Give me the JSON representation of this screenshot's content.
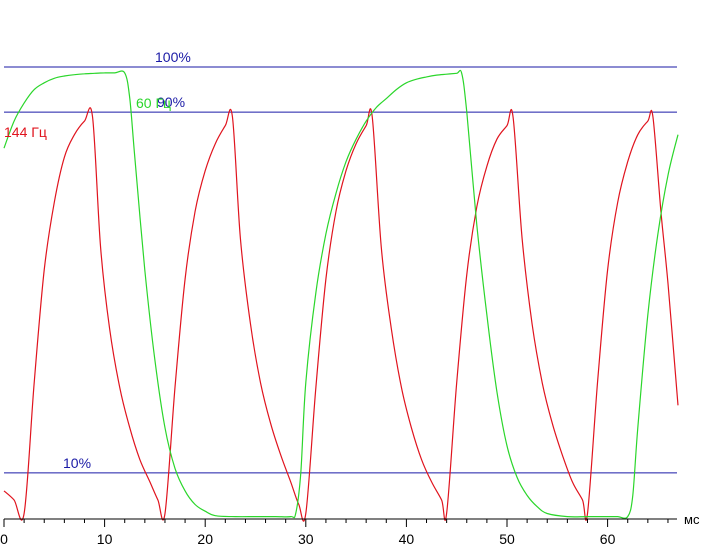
{
  "chart_data": {
    "type": "line",
    "xlabel": "мс",
    "xlim": [
      0,
      67
    ],
    "ylim": [
      0,
      100
    ],
    "x_ticks": [
      "0",
      "10",
      "20",
      "30",
      "40",
      "50",
      "60"
    ],
    "x_tick_values": [
      0,
      10,
      20,
      30,
      40,
      50,
      60
    ],
    "x_minor_step": 2,
    "grid": false,
    "reference_lines": [
      {
        "label": "100%",
        "value": 100,
        "color": "#1a1aa6"
      },
      {
        "label": "90%",
        "value": 90,
        "color": "#1a1aa6"
      },
      {
        "label": "10%",
        "value": 10,
        "color": "#1a1aa6"
      }
    ],
    "series": [
      {
        "name": "144 Гц",
        "color": "#e0141e",
        "x": [
          0,
          1,
          2,
          3,
          4,
          5,
          6,
          7,
          8,
          8.8,
          9.6,
          10.5,
          11.5,
          12.5,
          13.5,
          14.5,
          15.3,
          16,
          17,
          18,
          19,
          20,
          21,
          22,
          22.7,
          23.5,
          24.5,
          25.5,
          26.5,
          27.5,
          28.5,
          29.3,
          30,
          31,
          32,
          33,
          34,
          35,
          36,
          36.6,
          37.5,
          38.5,
          39.5,
          40.5,
          41.5,
          42.5,
          43.5,
          44,
          45,
          46,
          47,
          48,
          49,
          50,
          50.6,
          51.5,
          52.5,
          53.5,
          54.5,
          55.5,
          56.5,
          57.5,
          58,
          59,
          60,
          61,
          62,
          63,
          64,
          64.5,
          65.3,
          66,
          67
        ],
        "y": [
          6,
          4,
          1,
          30,
          55,
          70,
          80,
          85,
          88,
          89,
          60,
          42,
          29,
          20,
          13,
          8,
          4,
          1,
          29,
          53,
          68,
          77,
          83,
          87,
          89,
          62,
          43,
          30,
          21,
          14,
          8,
          3,
          1,
          29,
          53,
          68,
          77,
          83,
          87,
          89,
          60,
          42,
          29,
          20,
          13,
          8,
          4,
          1,
          30,
          54,
          69,
          78,
          84,
          87,
          89,
          62,
          43,
          30,
          21,
          14,
          8,
          4,
          1,
          30,
          55,
          70,
          79,
          85,
          88,
          89,
          68,
          52,
          25
        ]
      },
      {
        "name": "60 Гц",
        "color": "#2bd62b",
        "x": [
          0,
          1,
          2,
          3,
          4,
          5,
          6,
          7,
          8,
          9,
          10,
          11,
          12,
          12.5,
          13,
          14,
          15,
          16,
          17,
          18,
          19,
          20,
          21,
          23,
          25,
          27,
          28.5,
          29,
          29.5,
          30,
          31,
          32,
          33,
          34,
          35,
          36,
          37,
          38,
          39,
          40,
          41,
          42,
          43,
          44,
          45,
          45.5,
          46,
          47,
          48,
          49,
          50,
          51,
          52,
          53,
          54,
          56,
          58,
          60,
          61,
          62,
          62.5,
          63,
          64,
          65,
          66,
          67
        ],
        "y": [
          82,
          88,
          92,
          95,
          96.5,
          97.5,
          98,
          98.3,
          98.5,
          98.6,
          98.7,
          98.7,
          98.7,
          93,
          80,
          55,
          35,
          20,
          11,
          6,
          3,
          1.5,
          0.5,
          0.3,
          0.3,
          0.3,
          0.3,
          1,
          10,
          30,
          50,
          63,
          72,
          79,
          84,
          88,
          91,
          93,
          95,
          96.5,
          97.3,
          97.8,
          98.2,
          98.4,
          98.6,
          98.6,
          90,
          65,
          45,
          28,
          16,
          9,
          5,
          2.5,
          1,
          0.3,
          0.3,
          0.3,
          0.3,
          0.3,
          5,
          20,
          45,
          63,
          76,
          85
        ]
      }
    ]
  },
  "labels": {
    "series_1": "144 Гц",
    "series_2": "60 Гц",
    "unit": "мс"
  }
}
